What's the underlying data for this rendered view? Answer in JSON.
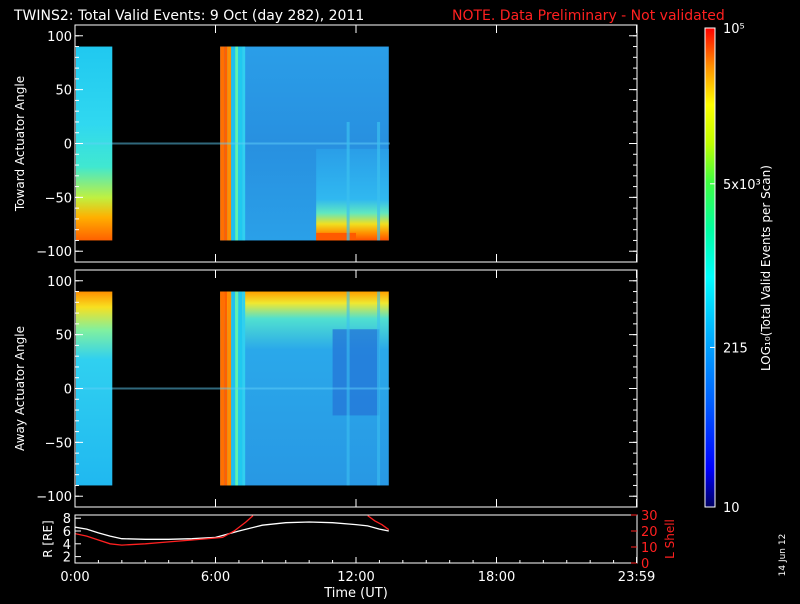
{
  "header": {
    "title": "TWINS2: Total Valid Events:  9 Oct (day 282), 2011",
    "note": "NOTE. Data Preliminary - Not validated"
  },
  "colorbar": {
    "label": "LOG₁₀(Total Valid Events per Scan)",
    "ticks": [
      {
        "value": 10,
        "label": "10"
      },
      {
        "value": 215,
        "label": "215"
      },
      {
        "value": 5000,
        "label": "5x10³"
      },
      {
        "value": 100000,
        "label": "10⁵"
      }
    ],
    "range": [
      10,
      100000
    ],
    "scale": "log"
  },
  "footer": {
    "date_stamp": "14 Jun 12"
  },
  "chart_data": [
    {
      "type": "heatmap",
      "ylabel": "Toward Actuator Angle",
      "ylim": [
        -110,
        110
      ],
      "yticks": [
        "100",
        "50",
        "0",
        "-50",
        "-100"
      ],
      "xlim": [
        0,
        24
      ],
      "angle_range": [
        -90,
        90
      ],
      "data_coverage_ut_hours": [
        [
          0.0,
          1.55
        ],
        [
          6.2,
          13.4
        ]
      ]
    },
    {
      "type": "heatmap",
      "ylabel": "Away Actuator Angle",
      "ylim": [
        -110,
        110
      ],
      "yticks": [
        "100",
        "50",
        "0",
        "-50",
        "-100"
      ],
      "xlim": [
        0,
        24
      ],
      "angle_range": [
        -90,
        90
      ],
      "data_coverage_ut_hours": [
        [
          0.0,
          1.55
        ],
        [
          6.2,
          13.4
        ]
      ]
    },
    {
      "type": "line",
      "ylabel": "R [RE]",
      "y2label": "L Shell",
      "xlabel": "Time (UT)",
      "xticks": [
        "0:00",
        "6:00",
        "12:00",
        "18:00",
        "23:59"
      ],
      "xtick_values": [
        0,
        6,
        12,
        18,
        23.98
      ],
      "yticks_left": [
        "8",
        "6",
        "4",
        "2"
      ],
      "ylim_left": [
        1,
        8.5
      ],
      "yticks_right": [
        "30",
        "20",
        "10",
        "0"
      ],
      "ylim_right": [
        0,
        30
      ],
      "series": [
        {
          "axis": "left",
          "color": "#ffffff",
          "x": [
            0,
            0.5,
            1.0,
            1.5,
            2.0,
            3.0,
            4.0,
            5.0,
            6.0,
            6.3,
            7.0,
            8.0,
            9.0,
            10.0,
            11.0,
            12.0,
            12.5,
            13.0,
            13.4
          ],
          "y": [
            6.6,
            6.3,
            5.7,
            5.2,
            4.8,
            4.7,
            4.7,
            4.8,
            5.0,
            5.3,
            6.0,
            6.9,
            7.3,
            7.4,
            7.3,
            7.0,
            6.8,
            6.3,
            6.0
          ]
        },
        {
          "axis": "left",
          "color": "#ff2020",
          "x": [
            0,
            0.5,
            1.0,
            1.5,
            2.0,
            3.0,
            4.0,
            5.0,
            6.0,
            6.3,
            6.8,
            7.3,
            7.6
          ],
          "y": [
            5.6,
            5.2,
            4.6,
            4.0,
            3.8,
            4.0,
            4.3,
            4.6,
            4.9,
            5.0,
            6.0,
            7.4,
            8.4
          ]
        },
        {
          "axis": "left",
          "color": "#ff2020",
          "x": [
            12.5,
            12.8,
            13.1,
            13.4
          ],
          "y": [
            8.4,
            7.6,
            7.0,
            6.2
          ]
        }
      ]
    }
  ]
}
